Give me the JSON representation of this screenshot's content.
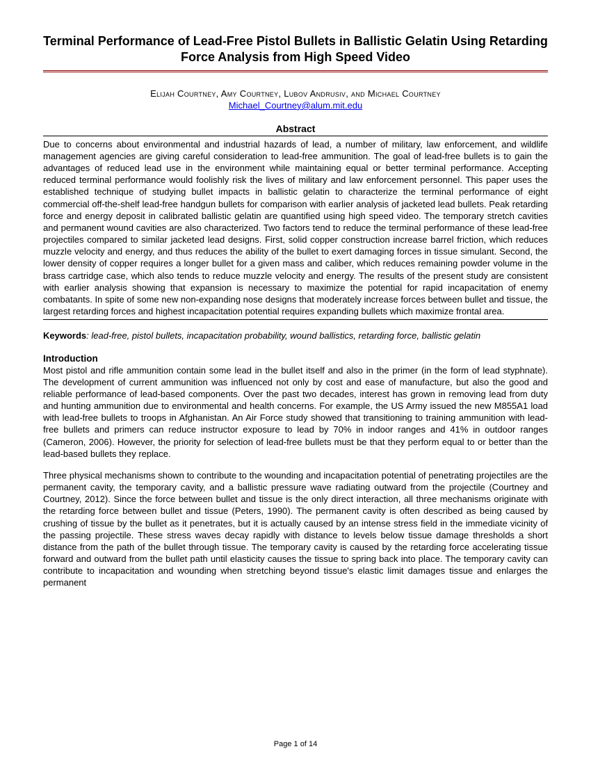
{
  "title": "Terminal Performance of Lead-Free Pistol Bullets in Ballistic Gelatin Using Retarding Force Analysis from High Speed Video",
  "authors": "Elijah Courtney, Amy Courtney, Lubov Andrusiv, and Michael Courtney",
  "email": "Michael_Courtney@alum.mit.edu",
  "abstract_heading": "Abstract",
  "abstract_text": "Due to concerns about environmental and industrial hazards of lead, a number of military, law enforcement, and wildlife management agencies are giving careful consideration to lead-free ammunition. The goal of lead-free bullets is to gain the advantages of reduced lead use in the environment while maintaining equal or better terminal performance. Accepting reduced terminal performance would foolishly risk the lives of military and law enforcement personnel. This paper uses the established technique of studying bullet impacts in ballistic gelatin to characterize the terminal performance of eight commercial off-the-shelf lead-free handgun bullets for comparison with earlier analysis of jacketed lead bullets. Peak retarding force and energy deposit in calibrated ballistic gelatin are quantified using high speed video. The temporary stretch cavities and permanent wound cavities are also characterized. Two factors tend to reduce the terminal performance of these lead-free projectiles compared to similar jacketed lead designs. First, solid copper construction increase barrel friction, which reduces muzzle velocity and energy, and thus reduces the ability of the bullet to exert damaging forces in tissue simulant. Second, the lower density of copper requires a longer bullet for a given mass and caliber, which reduces remaining powder volume in the brass cartridge case, which also tends to reduce muzzle velocity and energy. The results of the present study are consistent with earlier analysis showing that expansion is necessary to maximize the potential for rapid incapacitation of enemy combatants. In spite of some new non-expanding nose designs that moderately increase forces between bullet and tissue, the largest retarding forces and highest incapacitation potential requires expanding bullets which maximize frontal area.",
  "keywords_label": "Keywords",
  "keywords_text": ": lead-free, pistol bullets, incapacitation probability, wound ballistics, retarding force, ballistic gelatin",
  "intro_heading": "Introduction",
  "intro_p1": "Most pistol and rifle ammunition contain some lead in the bullet itself and also in the primer (in the form of lead styphnate). The development of current ammunition was influenced not only by cost and ease of manufacture, but also the good and reliable performance of lead-based components. Over the past two decades, interest has grown in removing lead from duty and hunting ammunition due to environmental and health concerns. For example, the US Army issued the new M855A1 load with lead-free bullets to troops in Afghanistan. An Air Force study showed that transitioning to training ammunition with lead-free bullets and primers can reduce instructor exposure to lead by 70% in indoor ranges and 41% in outdoor ranges (Cameron, 2006). However, the priority for selection of lead-free bullets must be that they perform equal to or better than the lead-based bullets they replace.",
  "intro_p2": "Three physical mechanisms shown to contribute to the wounding and incapacitation potential of penetrating projectiles are the permanent cavity, the temporary cavity, and a ballistic pressure wave radiating outward from the projectile (Courtney and Courtney, 2012). Since the force between bullet and tissue is the only direct interaction, all three mechanisms originate with the retarding force between bullet and tissue (Peters, 1990). The permanent cavity is often described as being caused by crushing of tissue by the bullet as it penetrates, but it is actually caused by an intense stress field in the immediate vicinity of the passing projectile. These stress waves decay rapidly with distance to levels below tissue damage thresholds a short distance from the path of the bullet through tissue. The temporary cavity is caused by the retarding force accelerating tissue forward and outward from the bullet path until elasticity causes the tissue to spring back into place. The temporary cavity can contribute to incapacitation and wounding when stretching beyond tissue's elastic limit damages tissue and enlarges the permanent",
  "page_footer": "Page 1 of 14"
}
